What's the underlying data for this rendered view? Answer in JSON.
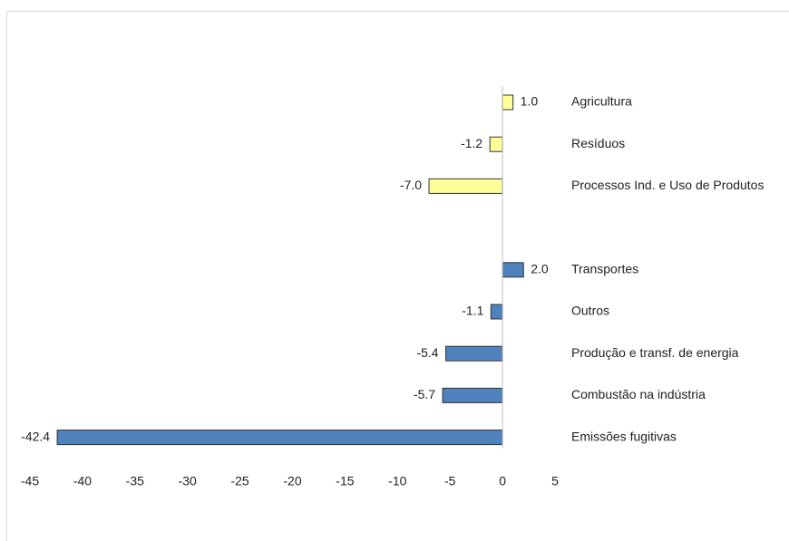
{
  "chart_data": {
    "type": "hbar",
    "categories": [
      "Agricultura",
      "Resíduos",
      "Processos Ind. e Uso de Produtos",
      null,
      "Transportes",
      "Outros",
      "Produção e transf. de energia",
      "Combustão na indústria",
      "Emissões fugitivas"
    ],
    "values": [
      1.0,
      -1.2,
      -7.0,
      null,
      2.0,
      -1.1,
      -5.4,
      -5.7,
      -42.4
    ],
    "value_labels": [
      "1.0",
      "-1.2",
      "-7.0",
      null,
      "2.0",
      "-1.1",
      "-5.4",
      "-5.7",
      "-42.4"
    ],
    "colors": [
      "#ffff99",
      "#ffff99",
      "#ffff99",
      null,
      "#4f81bd",
      "#4f81bd",
      "#4f81bd",
      "#4f81bd",
      "#4f81bd"
    ],
    "xlim": [
      -45,
      5
    ],
    "xticks": [
      -45,
      -40,
      -35,
      -30,
      -25,
      -20,
      -15,
      -10,
      -5,
      0,
      5
    ]
  }
}
